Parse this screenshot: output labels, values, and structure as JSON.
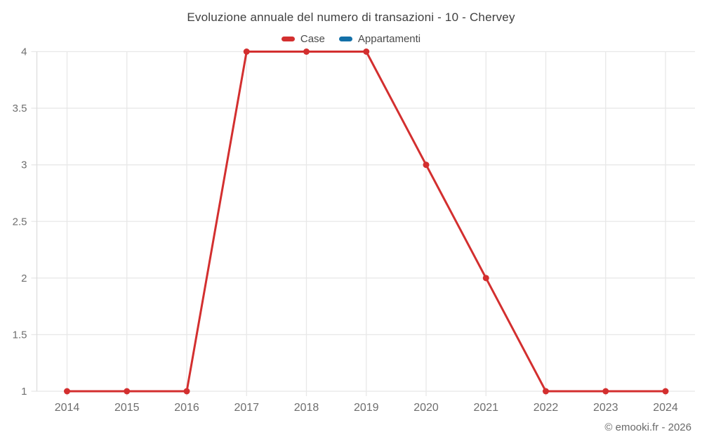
{
  "page": {
    "background": "#ffffff"
  },
  "header": {
    "title": "Evoluzione annuale del numero di transazioni - 10 - Chervey"
  },
  "legend": {
    "items": [
      {
        "label": "Case",
        "color": "#d32f2f"
      },
      {
        "label": "Appartamenti",
        "color": "#1370a8"
      }
    ]
  },
  "chart_data": {
    "type": "line",
    "title": "Evoluzione annuale del numero di transazioni - 10 - Chervey",
    "categories": [
      "2014",
      "2015",
      "2016",
      "2017",
      "2018",
      "2019",
      "2020",
      "2021",
      "2022",
      "2023",
      "2024"
    ],
    "series": [
      {
        "name": "Case",
        "color": "#d32f2f",
        "values": [
          1,
          1,
          1,
          4,
          4,
          4,
          3,
          2,
          1,
          1,
          1
        ]
      },
      {
        "name": "Appartamenti",
        "color": "#1370a8",
        "values": []
      }
    ],
    "xlabel": "",
    "ylabel": "",
    "ylim": [
      1,
      4
    ],
    "yticks": [
      1,
      1.5,
      2,
      2.5,
      3,
      3.5,
      4
    ],
    "grid": true,
    "legend_position": "top",
    "grid_color": "#e8e8e8",
    "tick_label_color": "#6e6e6e"
  },
  "footer": {
    "credit": "© emooki.fr - 2026"
  }
}
